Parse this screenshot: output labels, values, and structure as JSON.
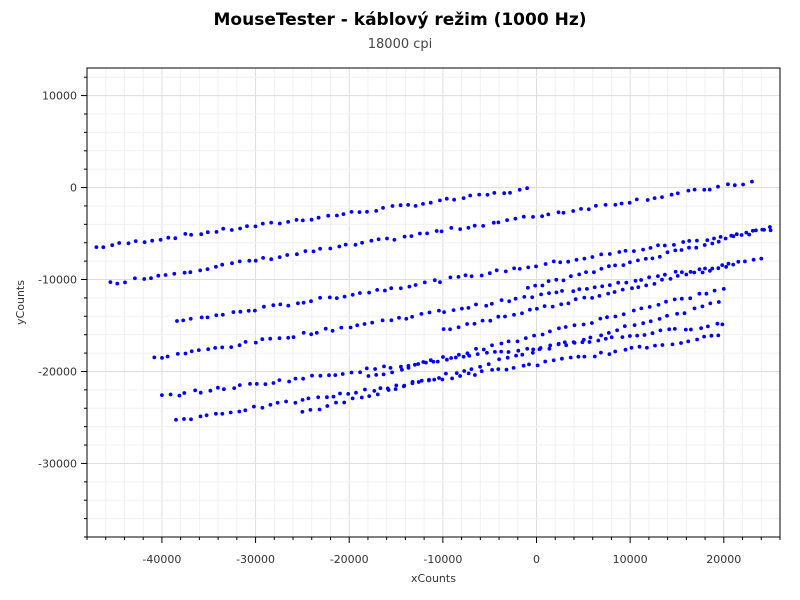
{
  "chart_data": {
    "type": "scatter",
    "title": "MouseTester - káblový režim (1000 Hz)",
    "subtitle": "18000 cpi",
    "xlabel": "xCounts",
    "ylabel": "yCounts",
    "xlim": [
      -48000,
      26000
    ],
    "ylim": [
      -38000,
      13000
    ],
    "xticks": [
      -40000,
      -30000,
      -20000,
      -10000,
      0,
      10000,
      20000
    ],
    "yticks": [
      10000,
      0,
      -10000,
      -20000,
      -30000
    ],
    "grid": true,
    "marker_color": "#0000ff",
    "series": [
      {
        "segments": [
          {
            "x0": -47000,
            "y0": -6500,
            "x1": -1000,
            "y1": -200,
            "n": 55
          },
          {
            "x0": -45500,
            "y0": -10400,
            "x1": 23000,
            "y1": 600,
            "n": 80
          },
          {
            "x0": -38500,
            "y0": -14600,
            "x1": 25000,
            "y1": -4500,
            "n": 75
          },
          {
            "x0": -41000,
            "y0": -18600,
            "x1": 24000,
            "y1": -7800,
            "n": 78
          },
          {
            "x0": -40000,
            "y0": -22700,
            "x1": 20000,
            "y1": -14800,
            "n": 72
          },
          {
            "x0": -38500,
            "y0": -25300,
            "x1": 19500,
            "y1": -16100,
            "n": 70
          },
          {
            "x0": -1000,
            "y0": -10900,
            "x1": 25000,
            "y1": -4400,
            "n": 34
          },
          {
            "x0": -10000,
            "y0": -15500,
            "x1": 21000,
            "y1": -8400,
            "n": 38
          },
          {
            "x0": -18000,
            "y0": -20600,
            "x1": 20000,
            "y1": -11000,
            "n": 44
          },
          {
            "x0": -25000,
            "y0": -24500,
            "x1": 19500,
            "y1": -12500,
            "n": 50
          }
        ]
      }
    ]
  }
}
